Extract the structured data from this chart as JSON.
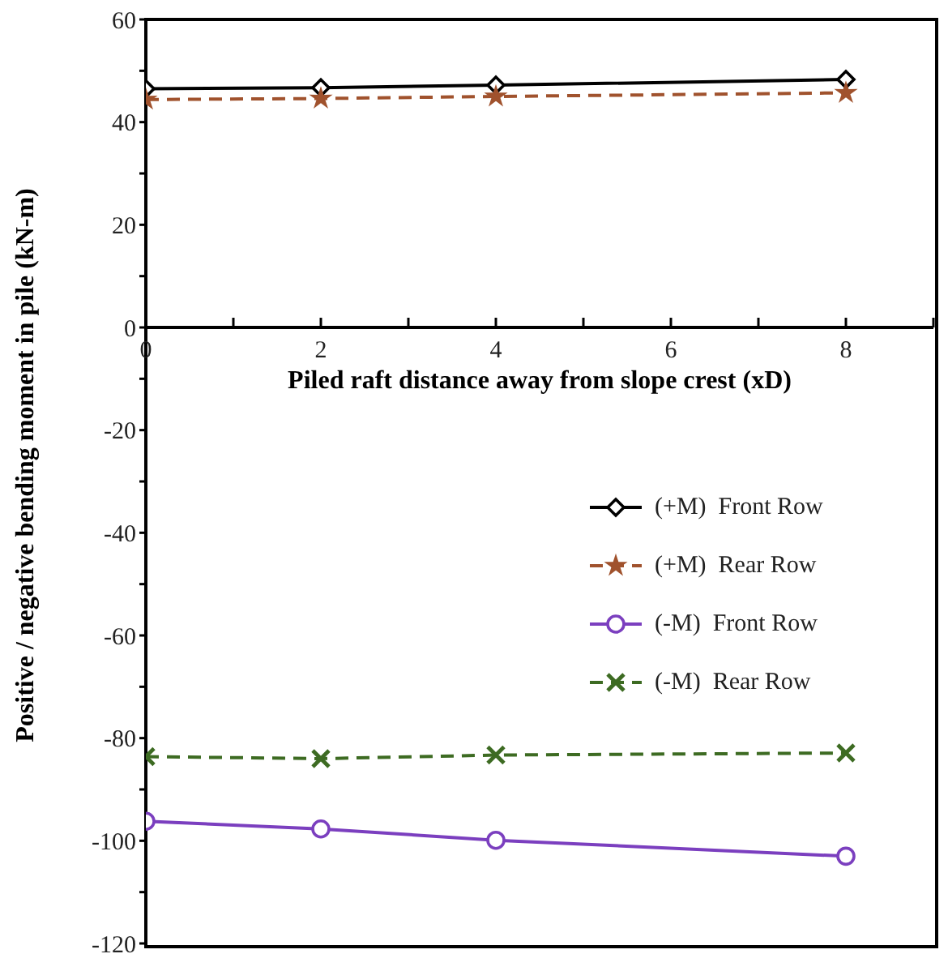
{
  "chart_data": {
    "type": "line",
    "xlabel": "Piled raft distance away from slope crest (xD)",
    "ylabel": "Positive / negative  bending moment in pile (kN-m)",
    "x": [
      0,
      2,
      4,
      8
    ],
    "series": [
      {
        "name": "(+M)  Front Row",
        "color": "#000000",
        "marker": "diamond",
        "line_style": "solid",
        "values": [
          46.5,
          46.7,
          47.2,
          48.3
        ]
      },
      {
        "name": "(+M)  Rear Row",
        "color": "#a0522d",
        "marker": "star",
        "line_style": "dashed",
        "values": [
          44.4,
          44.6,
          45.0,
          45.7
        ]
      },
      {
        "name": "(-M)  Front Row",
        "color": "#7b3fbf",
        "marker": "circle",
        "line_style": "solid",
        "values": [
          -96.2,
          -97.7,
          -99.9,
          -103
        ]
      },
      {
        "name": "(-M)  Rear Row",
        "color": "#3d6b22",
        "marker": "cross",
        "line_style": "dashed",
        "values": [
          -83.6,
          -84,
          -83.3,
          -82.9
        ]
      }
    ],
    "xlim": [
      0,
      9
    ],
    "xticks": [
      0,
      {
        "value": 1,
        "label": null
      },
      2,
      {
        "value": 3,
        "label": null
      },
      4,
      {
        "value": 5,
        "label": null
      },
      6,
      {
        "value": 7,
        "label": null
      },
      8,
      {
        "value": 9,
        "label": null
      }
    ],
    "ylim": [
      -120,
      60
    ],
    "yticks": [
      -120,
      {
        "value": -110,
        "label": null
      },
      -100,
      {
        "value": -90,
        "label": null
      },
      -80,
      {
        "value": -70,
        "label": null
      },
      -60,
      {
        "value": -50,
        "label": null
      },
      -40,
      {
        "value": -30,
        "label": null
      },
      -20,
      {
        "value": -10,
        "label": null
      },
      0,
      {
        "value": 10,
        "label": null
      },
      20,
      {
        "value": 30,
        "label": null
      },
      40,
      {
        "value": 50,
        "label": null
      },
      60
    ],
    "grid": false,
    "legend": "right"
  }
}
